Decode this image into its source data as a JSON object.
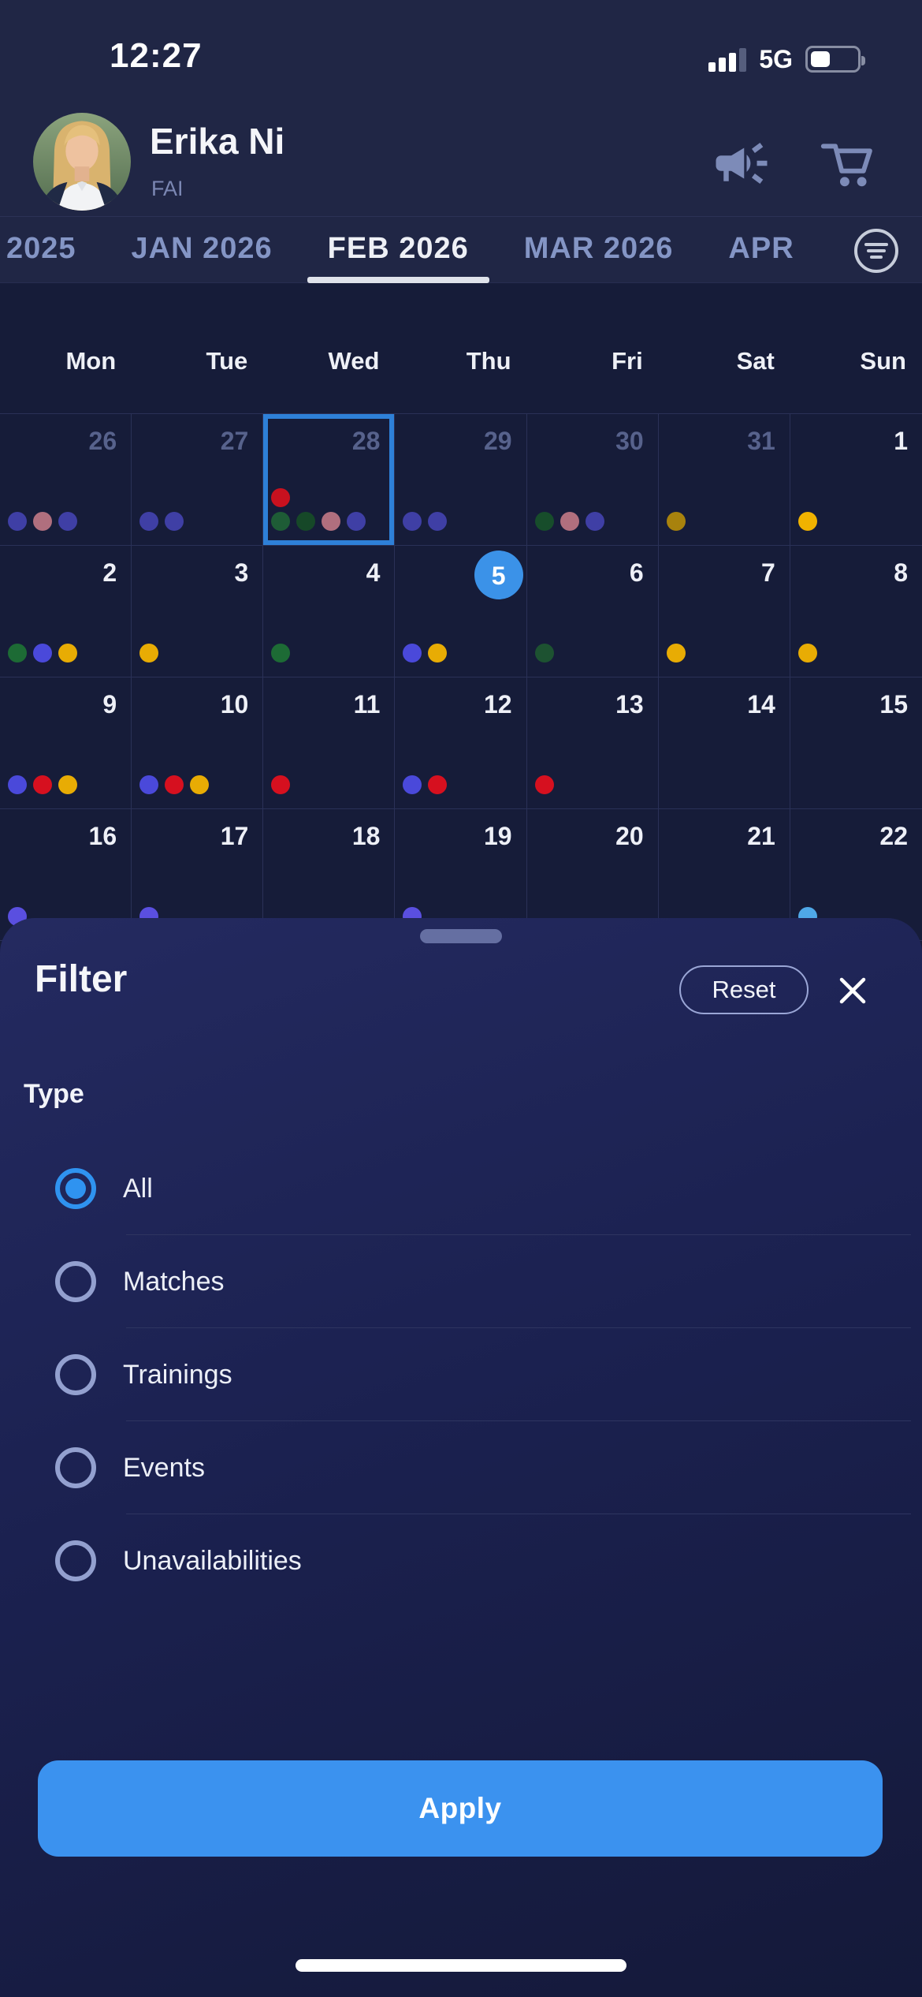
{
  "status_bar": {
    "time": "12:27",
    "network": "5G",
    "signal_bars_filled": 3,
    "signal_bars_total": 4,
    "battery_percent_visual": 35
  },
  "header": {
    "name": "Erika Ni",
    "org": "FAI",
    "icons": [
      "megaphone-icon",
      "cart-icon"
    ]
  },
  "tabs": {
    "items": [
      {
        "label": "2025",
        "active": false
      },
      {
        "label": "JAN 2026",
        "active": false
      },
      {
        "label": "FEB 2026",
        "active": true
      },
      {
        "label": "MAR 2026",
        "active": false
      },
      {
        "label": "APR",
        "active": false
      }
    ]
  },
  "calendar": {
    "day_headers": [
      "Mon",
      "Tue",
      "Wed",
      "Thu",
      "Fri",
      "Sat",
      "Sun"
    ],
    "weeks": [
      [
        {
          "day": "26",
          "outside": true,
          "dot_rows": [
            [
              "#3f3fa5",
              "#b06f7e",
              "#3f3fa5"
            ]
          ]
        },
        {
          "day": "27",
          "outside": true,
          "dot_rows": [
            [
              "#3f3fa5",
              "#3f3fa5"
            ]
          ]
        },
        {
          "day": "28",
          "outside": true,
          "selected": true,
          "dot_rows": [
            [
              "#c8111f"
            ],
            [
              "#1e5c36",
              "#164828",
              "#b06f7e",
              "#3f3fa5"
            ]
          ]
        },
        {
          "day": "29",
          "outside": true,
          "dot_rows": [
            [
              "#3f3fa5",
              "#3f3fa5"
            ]
          ]
        },
        {
          "day": "30",
          "outside": true,
          "dot_rows": [
            [
              "#174d2b",
              "#b06f7e",
              "#3f3fa5"
            ]
          ]
        },
        {
          "day": "31",
          "outside": true,
          "dot_rows": [
            [
              "#a8820d"
            ]
          ]
        },
        {
          "day": "1",
          "outside": false,
          "dot_rows": [
            [
              "#f0b200"
            ]
          ]
        }
      ],
      [
        {
          "day": "2",
          "outside": false,
          "dot_rows": [
            [
              "#1d6b35",
              "#4a49da",
              "#e8ac04"
            ]
          ]
        },
        {
          "day": "3",
          "outside": false,
          "dot_rows": [
            [
              "#e8ac04"
            ]
          ]
        },
        {
          "day": "4",
          "outside": false,
          "dot_rows": [
            [
              "#1d6b35"
            ]
          ]
        },
        {
          "day": "5",
          "outside": false,
          "today": true,
          "dot_rows": [
            [
              "#4a49da",
              "#e8ac04"
            ]
          ]
        },
        {
          "day": "6",
          "outside": false,
          "dot_rows": [
            [
              "#1d5231"
            ]
          ]
        },
        {
          "day": "7",
          "outside": false,
          "dot_rows": [
            [
              "#e8ac04"
            ]
          ]
        },
        {
          "day": "8",
          "outside": false,
          "dot_rows": [
            [
              "#e8ac04"
            ]
          ]
        }
      ],
      [
        {
          "day": "9",
          "outside": false,
          "dot_rows": [
            [
              "#4a49da",
              "#d6101f",
              "#e8ac04"
            ]
          ]
        },
        {
          "day": "10",
          "outside": false,
          "dot_rows": [
            [
              "#4a49da",
              "#d6101f",
              "#e8ac04"
            ]
          ]
        },
        {
          "day": "11",
          "outside": false,
          "dot_rows": [
            [
              "#d6101f"
            ]
          ]
        },
        {
          "day": "12",
          "outside": false,
          "dot_rows": [
            [
              "#4a49da",
              "#d6101f"
            ]
          ]
        },
        {
          "day": "13",
          "outside": false,
          "dot_rows": [
            [
              "#d6101f"
            ]
          ]
        },
        {
          "day": "14",
          "outside": false,
          "dot_rows": [
            []
          ]
        },
        {
          "day": "15",
          "outside": false,
          "dot_rows": [
            []
          ]
        }
      ],
      [
        {
          "day": "16",
          "outside": false,
          "dot_rows": [
            [
              "#5a4fe0"
            ]
          ]
        },
        {
          "day": "17",
          "outside": false,
          "dot_rows": [
            [
              "#5a4fe0"
            ]
          ]
        },
        {
          "day": "18",
          "outside": false,
          "dot_rows": [
            []
          ]
        },
        {
          "day": "19",
          "outside": false,
          "dot_rows": [
            [
              "#5a4fe0"
            ]
          ]
        },
        {
          "day": "20",
          "outside": false,
          "dot_rows": [
            []
          ]
        },
        {
          "day": "21",
          "outside": false,
          "dot_rows": [
            []
          ]
        },
        {
          "day": "22",
          "outside": false,
          "dot_rows": [
            [
              "#4fa8e8"
            ]
          ]
        }
      ]
    ]
  },
  "filter_sheet": {
    "title": "Filter",
    "reset_label": "Reset",
    "section_label": "Type",
    "options": [
      {
        "label": "All",
        "selected": true
      },
      {
        "label": "Matches",
        "selected": false
      },
      {
        "label": "Trainings",
        "selected": false
      },
      {
        "label": "Events",
        "selected": false
      },
      {
        "label": "Unavailabilities",
        "selected": false
      }
    ],
    "apply_label": "Apply"
  },
  "colors": {
    "top_bg": "#202645",
    "calendar_bg": "#161c39",
    "gridline": "#2a3157",
    "sheet_top": "#242a60",
    "sheet_bottom": "#141939",
    "accent_blue": "#3b92ef",
    "today_blue": "#3b92e8",
    "selected_day_border": "#2e80d8",
    "radio_selected": "#2f93f0",
    "radio_unselected": "#93a0cf",
    "tab_inactive": "#8495c5",
    "tab_active": "#eef0f6",
    "muted_icon": "#7d8bb8",
    "outside_day_text": "#57628c"
  }
}
